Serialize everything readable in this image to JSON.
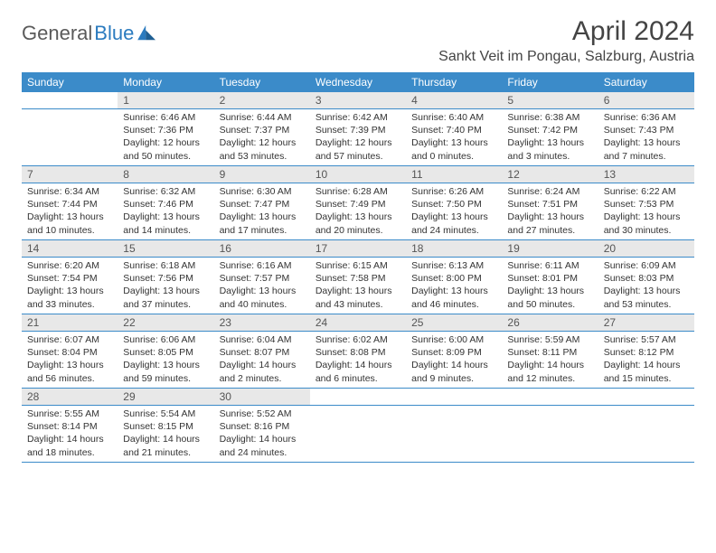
{
  "logo": {
    "part1": "General",
    "part2": "Blue"
  },
  "title": "April 2024",
  "location": "Sankt Veit im Pongau, Salzburg, Austria",
  "colors": {
    "header_bg": "#3b8bc9",
    "header_fg": "#ffffff",
    "daynum_bg": "#e8e8e8",
    "rule": "#3b8bc9",
    "logo_gray": "#5a5a5a",
    "logo_blue": "#2b7bbf",
    "text": "#333333"
  },
  "weekdays": [
    "Sunday",
    "Monday",
    "Tuesday",
    "Wednesday",
    "Thursday",
    "Friday",
    "Saturday"
  ],
  "weeks": [
    [
      null,
      {
        "n": "1",
        "sr": "Sunrise: 6:46 AM",
        "ss": "Sunset: 7:36 PM",
        "d1": "Daylight: 12 hours",
        "d2": "and 50 minutes."
      },
      {
        "n": "2",
        "sr": "Sunrise: 6:44 AM",
        "ss": "Sunset: 7:37 PM",
        "d1": "Daylight: 12 hours",
        "d2": "and 53 minutes."
      },
      {
        "n": "3",
        "sr": "Sunrise: 6:42 AM",
        "ss": "Sunset: 7:39 PM",
        "d1": "Daylight: 12 hours",
        "d2": "and 57 minutes."
      },
      {
        "n": "4",
        "sr": "Sunrise: 6:40 AM",
        "ss": "Sunset: 7:40 PM",
        "d1": "Daylight: 13 hours",
        "d2": "and 0 minutes."
      },
      {
        "n": "5",
        "sr": "Sunrise: 6:38 AM",
        "ss": "Sunset: 7:42 PM",
        "d1": "Daylight: 13 hours",
        "d2": "and 3 minutes."
      },
      {
        "n": "6",
        "sr": "Sunrise: 6:36 AM",
        "ss": "Sunset: 7:43 PM",
        "d1": "Daylight: 13 hours",
        "d2": "and 7 minutes."
      }
    ],
    [
      {
        "n": "7",
        "sr": "Sunrise: 6:34 AM",
        "ss": "Sunset: 7:44 PM",
        "d1": "Daylight: 13 hours",
        "d2": "and 10 minutes."
      },
      {
        "n": "8",
        "sr": "Sunrise: 6:32 AM",
        "ss": "Sunset: 7:46 PM",
        "d1": "Daylight: 13 hours",
        "d2": "and 14 minutes."
      },
      {
        "n": "9",
        "sr": "Sunrise: 6:30 AM",
        "ss": "Sunset: 7:47 PM",
        "d1": "Daylight: 13 hours",
        "d2": "and 17 minutes."
      },
      {
        "n": "10",
        "sr": "Sunrise: 6:28 AM",
        "ss": "Sunset: 7:49 PM",
        "d1": "Daylight: 13 hours",
        "d2": "and 20 minutes."
      },
      {
        "n": "11",
        "sr": "Sunrise: 6:26 AM",
        "ss": "Sunset: 7:50 PM",
        "d1": "Daylight: 13 hours",
        "d2": "and 24 minutes."
      },
      {
        "n": "12",
        "sr": "Sunrise: 6:24 AM",
        "ss": "Sunset: 7:51 PM",
        "d1": "Daylight: 13 hours",
        "d2": "and 27 minutes."
      },
      {
        "n": "13",
        "sr": "Sunrise: 6:22 AM",
        "ss": "Sunset: 7:53 PM",
        "d1": "Daylight: 13 hours",
        "d2": "and 30 minutes."
      }
    ],
    [
      {
        "n": "14",
        "sr": "Sunrise: 6:20 AM",
        "ss": "Sunset: 7:54 PM",
        "d1": "Daylight: 13 hours",
        "d2": "and 33 minutes."
      },
      {
        "n": "15",
        "sr": "Sunrise: 6:18 AM",
        "ss": "Sunset: 7:56 PM",
        "d1": "Daylight: 13 hours",
        "d2": "and 37 minutes."
      },
      {
        "n": "16",
        "sr": "Sunrise: 6:16 AM",
        "ss": "Sunset: 7:57 PM",
        "d1": "Daylight: 13 hours",
        "d2": "and 40 minutes."
      },
      {
        "n": "17",
        "sr": "Sunrise: 6:15 AM",
        "ss": "Sunset: 7:58 PM",
        "d1": "Daylight: 13 hours",
        "d2": "and 43 minutes."
      },
      {
        "n": "18",
        "sr": "Sunrise: 6:13 AM",
        "ss": "Sunset: 8:00 PM",
        "d1": "Daylight: 13 hours",
        "d2": "and 46 minutes."
      },
      {
        "n": "19",
        "sr": "Sunrise: 6:11 AM",
        "ss": "Sunset: 8:01 PM",
        "d1": "Daylight: 13 hours",
        "d2": "and 50 minutes."
      },
      {
        "n": "20",
        "sr": "Sunrise: 6:09 AM",
        "ss": "Sunset: 8:03 PM",
        "d1": "Daylight: 13 hours",
        "d2": "and 53 minutes."
      }
    ],
    [
      {
        "n": "21",
        "sr": "Sunrise: 6:07 AM",
        "ss": "Sunset: 8:04 PM",
        "d1": "Daylight: 13 hours",
        "d2": "and 56 minutes."
      },
      {
        "n": "22",
        "sr": "Sunrise: 6:06 AM",
        "ss": "Sunset: 8:05 PM",
        "d1": "Daylight: 13 hours",
        "d2": "and 59 minutes."
      },
      {
        "n": "23",
        "sr": "Sunrise: 6:04 AM",
        "ss": "Sunset: 8:07 PM",
        "d1": "Daylight: 14 hours",
        "d2": "and 2 minutes."
      },
      {
        "n": "24",
        "sr": "Sunrise: 6:02 AM",
        "ss": "Sunset: 8:08 PM",
        "d1": "Daylight: 14 hours",
        "d2": "and 6 minutes."
      },
      {
        "n": "25",
        "sr": "Sunrise: 6:00 AM",
        "ss": "Sunset: 8:09 PM",
        "d1": "Daylight: 14 hours",
        "d2": "and 9 minutes."
      },
      {
        "n": "26",
        "sr": "Sunrise: 5:59 AM",
        "ss": "Sunset: 8:11 PM",
        "d1": "Daylight: 14 hours",
        "d2": "and 12 minutes."
      },
      {
        "n": "27",
        "sr": "Sunrise: 5:57 AM",
        "ss": "Sunset: 8:12 PM",
        "d1": "Daylight: 14 hours",
        "d2": "and 15 minutes."
      }
    ],
    [
      {
        "n": "28",
        "sr": "Sunrise: 5:55 AM",
        "ss": "Sunset: 8:14 PM",
        "d1": "Daylight: 14 hours",
        "d2": "and 18 minutes."
      },
      {
        "n": "29",
        "sr": "Sunrise: 5:54 AM",
        "ss": "Sunset: 8:15 PM",
        "d1": "Daylight: 14 hours",
        "d2": "and 21 minutes."
      },
      {
        "n": "30",
        "sr": "Sunrise: 5:52 AM",
        "ss": "Sunset: 8:16 PM",
        "d1": "Daylight: 14 hours",
        "d2": "and 24 minutes."
      },
      null,
      null,
      null,
      null
    ]
  ]
}
